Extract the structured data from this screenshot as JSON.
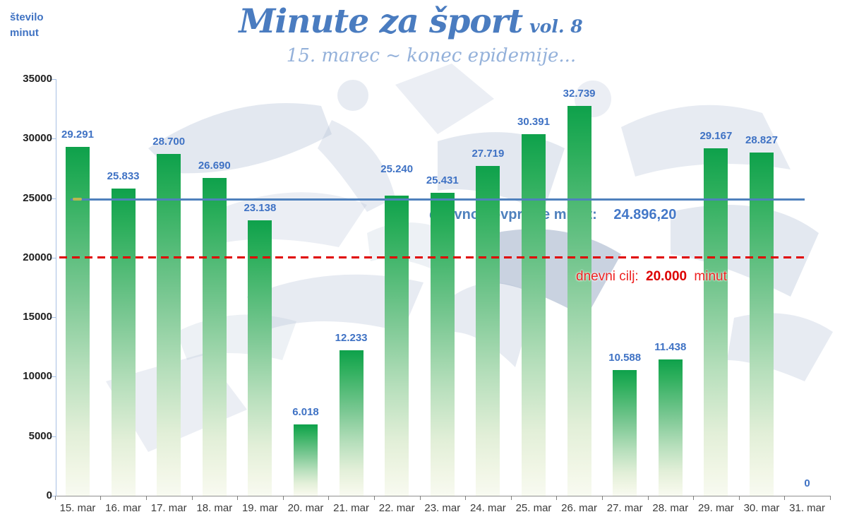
{
  "header": {
    "title": "Minute za šport",
    "title_suffix": "vol. 8",
    "subtitle": "15. marec ~ konec epidemije...",
    "title_color": "#4a7cc0",
    "subtitle_color": "#94b1da"
  },
  "chart_data": {
    "type": "bar",
    "title": "Minute za šport vol. 8",
    "subtitle": "15. marec ~ konec epidemije...",
    "ylabel_line1": "število",
    "ylabel_line2": "minut",
    "xlabel": "",
    "ylim": [
      0,
      35000
    ],
    "grid": false,
    "legend": false,
    "y_tick_values": [
      0,
      5000,
      10000,
      15000,
      20000,
      25000,
      30000,
      35000
    ],
    "y_tick_labels": [
      "0",
      "5000",
      "10000",
      "15000",
      "20000",
      "25000",
      "30000",
      "35000"
    ],
    "categories": [
      "15. mar",
      "16. mar",
      "17. mar",
      "18. mar",
      "19. mar",
      "20. mar",
      "21. mar",
      "22. mar",
      "23. mar",
      "24. mar",
      "25. mar",
      "26. mar",
      "27. mar",
      "28. mar",
      "29. mar",
      "30. mar",
      "31. mar"
    ],
    "values": [
      29291,
      25833,
      28700,
      26690,
      23138,
      6018,
      12233,
      25240,
      25431,
      27719,
      30391,
      32739,
      10588,
      11438,
      29167,
      28827,
      0
    ],
    "labels": [
      "29.291",
      "25.833",
      "28.700",
      "26.690",
      "23.138",
      "6.018",
      "12.233",
      "25.240",
      "25.431",
      "27.719",
      "30.391",
      "32.739",
      "10.588",
      "11.438",
      "29.167",
      "28.827",
      "0"
    ],
    "label_raise": {
      "7": 20
    },
    "average_line": {
      "value": 24896.2,
      "label": "dnevno povprečje minut:",
      "value_label": "24.896,20",
      "color": "#4f81bd",
      "start_marker_color": "#b9b84e"
    },
    "goal_line": {
      "value": 20000,
      "label_prefix": "dnevni cilj:",
      "value_label": "20.000",
      "label_suffix": "minut",
      "color": "#e00000"
    },
    "palette": {
      "bar_top": "#0ea14b",
      "bar_bottom": "#f8faf1",
      "data_label": "#3f72c4",
      "y_axis_line": "#a7c0e4",
      "x_axis_line": "#909090",
      "watermark": "#afbdd3"
    }
  }
}
